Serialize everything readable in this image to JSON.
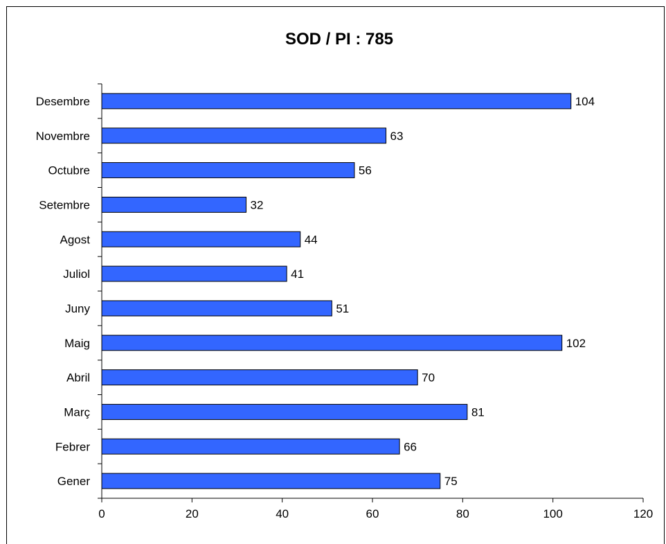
{
  "chart_data": {
    "type": "bar",
    "orientation": "horizontal",
    "title": "SOD / PI : 785",
    "categories": [
      "Desembre",
      "Novembre",
      "Octubre",
      "Setembre",
      "Agost",
      "Juliol",
      "Juny",
      "Maig",
      "Abril",
      "Març",
      "Febrer",
      "Gener"
    ],
    "values": [
      104,
      63,
      56,
      32,
      44,
      41,
      51,
      102,
      70,
      81,
      66,
      75
    ],
    "xlim": [
      0,
      120
    ],
    "xticks": [
      0,
      20,
      40,
      60,
      80,
      100,
      120
    ],
    "xlabel": "",
    "ylabel": "",
    "grid": false,
    "legend": "none",
    "data_labels": true,
    "colors": {
      "bar_fill": "#3366ff",
      "bar_stroke": "#000000",
      "axis": "#000000",
      "background": "#ffffff"
    }
  }
}
